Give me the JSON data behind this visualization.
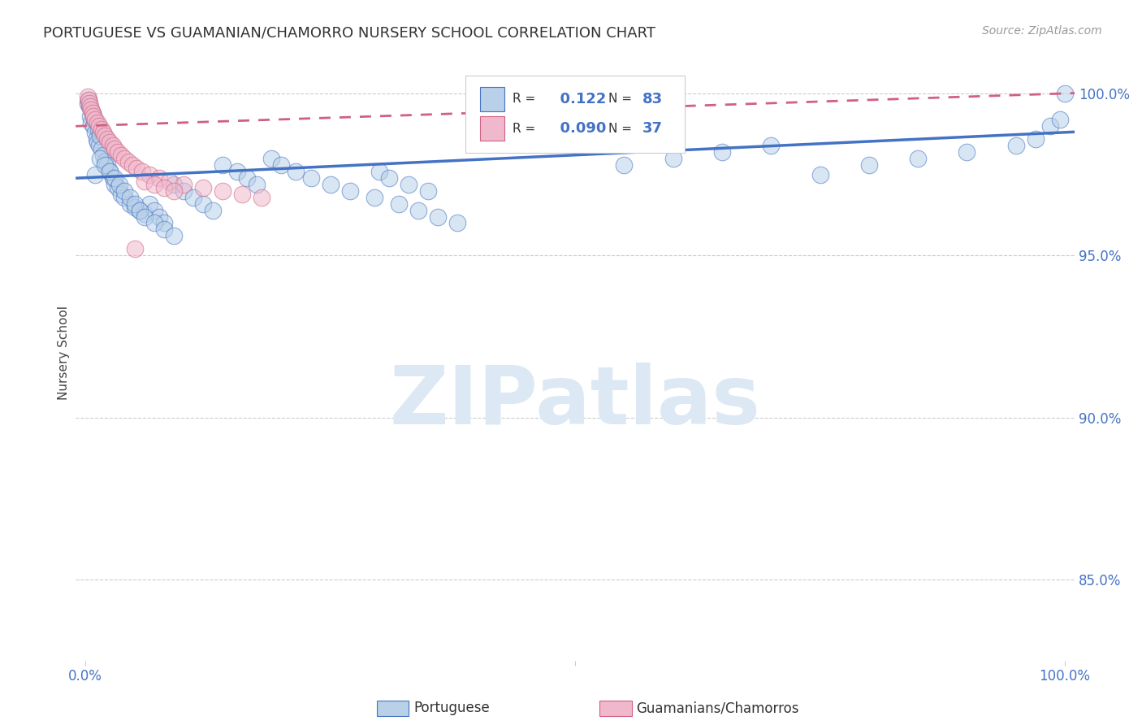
{
  "title": "PORTUGUESE VS GUAMANIAN/CHAMORRO NURSERY SCHOOL CORRELATION CHART",
  "source_text": "Source: ZipAtlas.com",
  "ylabel": "Nursery School",
  "r_blue": 0.122,
  "n_blue": 83,
  "r_pink": 0.09,
  "n_pink": 37,
  "color_blue_fill": "#b8d0e8",
  "color_blue_edge": "#4472c4",
  "color_pink_fill": "#f0b8cc",
  "color_pink_edge": "#d06080",
  "color_blue_line": "#4472c4",
  "color_pink_line": "#d06080",
  "watermark_color": "#dce8f4",
  "ylim_lo": 0.825,
  "ylim_hi": 1.015,
  "xlim_lo": -0.01,
  "xlim_hi": 1.01,
  "yticks": [
    0.85,
    0.9,
    0.95,
    1.0
  ],
  "ytick_labels": [
    "85.0%",
    "90.0%",
    "95.0%",
    "100.0%"
  ],
  "blue_line_x0": 0.0,
  "blue_line_y0": 0.974,
  "blue_line_x1": 1.0,
  "blue_line_y1": 0.988,
  "pink_line_x0": 0.0,
  "pink_line_y0": 0.99,
  "pink_line_x1": 1.0,
  "pink_line_y1": 1.0,
  "blue_pts_x": [
    0.002,
    0.003,
    0.004,
    0.005,
    0.006,
    0.007,
    0.008,
    0.009,
    0.01,
    0.011,
    0.012,
    0.013,
    0.014,
    0.015,
    0.016,
    0.018,
    0.02,
    0.022,
    0.025,
    0.028,
    0.03,
    0.033,
    0.036,
    0.04,
    0.045,
    0.05,
    0.055,
    0.06,
    0.065,
    0.07,
    0.075,
    0.08,
    0.09,
    0.1,
    0.11,
    0.12,
    0.13,
    0.14,
    0.155,
    0.165,
    0.175,
    0.19,
    0.2,
    0.215,
    0.23,
    0.25,
    0.27,
    0.295,
    0.32,
    0.34,
    0.36,
    0.38,
    0.01,
    0.015,
    0.02,
    0.025,
    0.03,
    0.035,
    0.04,
    0.045,
    0.05,
    0.055,
    0.06,
    0.07,
    0.08,
    0.09,
    0.55,
    0.6,
    0.65,
    0.7,
    0.75,
    0.8,
    0.85,
    0.9,
    0.95,
    0.97,
    0.985,
    0.995,
    1.0,
    0.3,
    0.31,
    0.33,
    0.35
  ],
  "blue_pts_y": [
    0.997,
    0.998,
    0.996,
    0.993,
    0.991,
    0.994,
    0.99,
    0.992,
    0.988,
    0.986,
    0.985,
    0.989,
    0.984,
    0.987,
    0.983,
    0.981,
    0.979,
    0.978,
    0.976,
    0.974,
    0.972,
    0.971,
    0.969,
    0.968,
    0.966,
    0.965,
    0.964,
    0.963,
    0.966,
    0.964,
    0.962,
    0.96,
    0.972,
    0.97,
    0.968,
    0.966,
    0.964,
    0.978,
    0.976,
    0.974,
    0.972,
    0.98,
    0.978,
    0.976,
    0.974,
    0.972,
    0.97,
    0.968,
    0.966,
    0.964,
    0.962,
    0.96,
    0.975,
    0.98,
    0.978,
    0.976,
    0.974,
    0.972,
    0.97,
    0.968,
    0.966,
    0.964,
    0.962,
    0.96,
    0.958,
    0.956,
    0.978,
    0.98,
    0.982,
    0.984,
    0.975,
    0.978,
    0.98,
    0.982,
    0.984,
    0.986,
    0.99,
    0.992,
    1.0,
    0.976,
    0.974,
    0.972,
    0.97
  ],
  "pink_pts_x": [
    0.002,
    0.003,
    0.004,
    0.005,
    0.006,
    0.007,
    0.008,
    0.01,
    0.012,
    0.014,
    0.016,
    0.018,
    0.02,
    0.022,
    0.025,
    0.028,
    0.03,
    0.033,
    0.036,
    0.04,
    0.044,
    0.048,
    0.052,
    0.058,
    0.065,
    0.075,
    0.085,
    0.1,
    0.12,
    0.14,
    0.16,
    0.18,
    0.06,
    0.07,
    0.08,
    0.09,
    0.05
  ],
  "pink_pts_y": [
    0.999,
    0.998,
    0.997,
    0.996,
    0.995,
    0.994,
    0.993,
    0.992,
    0.991,
    0.99,
    0.989,
    0.988,
    0.987,
    0.986,
    0.985,
    0.984,
    0.983,
    0.982,
    0.981,
    0.98,
    0.979,
    0.978,
    0.977,
    0.976,
    0.975,
    0.974,
    0.973,
    0.972,
    0.971,
    0.97,
    0.969,
    0.968,
    0.973,
    0.972,
    0.971,
    0.97,
    0.952
  ]
}
